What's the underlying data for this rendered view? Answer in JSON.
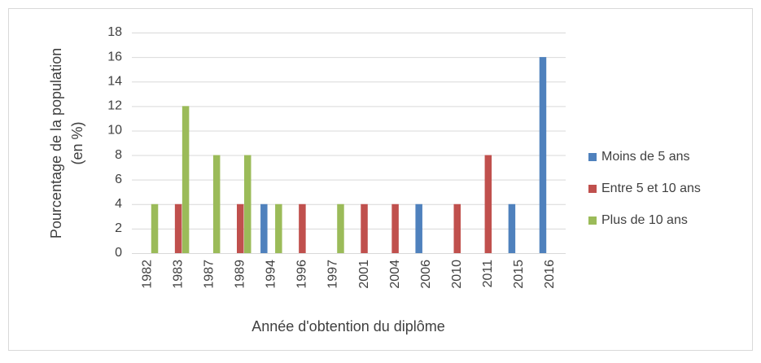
{
  "chart_data": {
    "type": "bar",
    "x_label": "Année d'obtention du diplôme",
    "y_label": [
      "Pourcentage de la population",
      "(en %)"
    ],
    "categories": [
      "1982",
      "1983",
      "1987",
      "1989",
      "1994",
      "1996",
      "1997",
      "2001",
      "2004",
      "2006",
      "2010",
      "2011",
      "2015",
      "2016"
    ],
    "series": [
      {
        "name": "Moins de 5 ans",
        "color": "#4f81bd",
        "values": [
          0,
          0,
          0,
          0,
          4,
          0,
          0,
          0,
          0,
          4,
          0,
          0,
          4,
          16
        ]
      },
      {
        "name": "Entre 5 et 10 ans",
        "color": "#c0504d",
        "values": [
          0,
          4,
          0,
          4,
          0,
          4,
          0,
          4,
          4,
          0,
          4,
          8,
          0,
          0
        ]
      },
      {
        "name": "Plus de 10 ans",
        "color": "#9bbb59",
        "values": [
          4,
          12,
          8,
          8,
          4,
          0,
          4,
          0,
          0,
          0,
          0,
          0,
          0,
          0
        ]
      }
    ],
    "ylim": [
      0,
      18
    ],
    "yticks": [
      0,
      2,
      4,
      6,
      8,
      10,
      12,
      14,
      16,
      18
    ],
    "grid": true,
    "legend": "right"
  }
}
